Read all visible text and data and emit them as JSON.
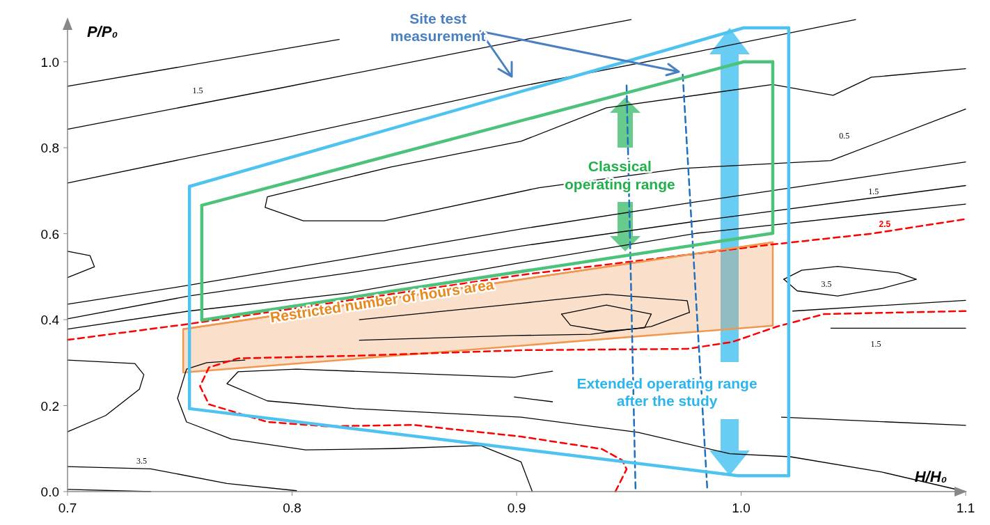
{
  "chart_data": {
    "type": "line",
    "xlabel": "H/H₀",
    "ylabel": "P/P₀",
    "xlim": [
      0.7,
      1.1
    ],
    "ylim": [
      0,
      1.1
    ],
    "xticks": [
      0.7,
      0.8,
      0.9,
      {
        "value": 1,
        "label": "1.0"
      },
      1.1
    ],
    "yticks": [
      {
        "value": 0,
        "label": "0.0"
      },
      0.2,
      0.4,
      0.6,
      0.8,
      {
        "value": 1,
        "label": "1.0"
      }
    ],
    "grid": false,
    "color": "#000000",
    "series": [
      {
        "x": [
          0.7,
          0.821
        ],
        "values": [
          0.943,
          1.052
        ]
      },
      {
        "x": [
          0.7,
          0.794,
          0.902,
          0.951
        ],
        "values": [
          0.843,
          0.938,
          1.05,
          1.098
        ]
      },
      {
        "x": [
          0.7,
          0.794,
          0.902,
          0.98,
          1.051
        ],
        "values": [
          0.718,
          0.82,
          0.943,
          1.023,
          1.098
        ]
      },
      {
        "x": [
          1.1,
          1.04,
          0.974,
          0.91,
          0.841,
          0.805,
          0.788,
          0.789,
          0.844,
          0.902,
          0.94,
          1.014,
          1.041,
          1.058,
          1.1
        ],
        "values": [
          0.89,
          0.77,
          0.752,
          0.707,
          0.63,
          0.63,
          0.661,
          0.686,
          0.755,
          0.815,
          0.893,
          0.947,
          0.922,
          0.964,
          0.984
        ]
      },
      {
        "x": [
          0.7,
          0.754,
          0.828,
          0.902,
          0.98,
          1.1
        ],
        "values": [
          0.436,
          0.48,
          0.545,
          0.611,
          0.674,
          0.767
        ]
      },
      {
        "x": [
          0.7,
          0.754,
          0.828,
          0.899,
          0.98,
          1.1
        ],
        "values": [
          0.402,
          0.455,
          0.511,
          0.569,
          0.629,
          0.712
        ]
      },
      {
        "x": [
          0.7,
          0.754,
          0.825,
          0.899,
          0.98,
          1.1
        ],
        "values": [
          0.378,
          0.42,
          0.462,
          0.53,
          0.601,
          0.669
        ]
      },
      {
        "x": [
          0.7,
          0.71,
          0.712,
          0.7
        ],
        "values": [
          0.559,
          0.549,
          0.523,
          0.498
        ]
      },
      {
        "x": [
          0.7,
          0.73,
          0.734,
          0.732,
          0.717,
          0.7
        ],
        "values": [
          0.306,
          0.298,
          0.272,
          0.238,
          0.177,
          0.139
        ]
      },
      {
        "x": [
          0.779,
          0.762,
          0.753,
          0.749,
          0.753,
          0.773,
          0.806,
          0.845,
          0.884,
          0.902,
          0.907
        ],
        "values": [
          0.306,
          0.3,
          0.285,
          0.217,
          0.162,
          0.122,
          0.097,
          0.1,
          0.107,
          0.069,
          0
        ]
      },
      {
        "x": [
          0.916,
          0.899,
          0.802,
          0.776,
          0.771,
          0.789,
          0.828,
          0.902,
          0.954,
          0.995,
          1.022,
          1.063,
          1.1
        ],
        "values": [
          0.28,
          0.266,
          0.285,
          0.279,
          0.251,
          0.211,
          0.193,
          0.173,
          0.138,
          0.088,
          0.081,
          0.045,
          0
        ]
      },
      {
        "x": [
          1.018,
          1.1
        ],
        "values": [
          0.173,
          0.154
        ]
      },
      {
        "x": [
          0.899,
          0.916
        ],
        "values": [
          0.22,
          0.209
        ]
      },
      {
        "x": [
          0.7,
          0.737,
          0.771,
          0.802
        ],
        "values": [
          0.058,
          0.053,
          0.019,
          0.002
        ]
      },
      {
        "x": [
          0.7,
          0.737
        ],
        "values": [
          0.005,
          0
        ]
      },
      {
        "x": [
          1.019,
          1.027,
          1.043,
          1.07,
          1.078
        ],
        "values": [
          0.494,
          0.515,
          0.524,
          0.509,
          0.494
        ]
      },
      {
        "x": [
          1.019,
          1.025,
          1.043,
          1.063,
          1.078
        ],
        "values": [
          0.494,
          0.467,
          0.455,
          0.473,
          0.494
        ]
      },
      {
        "x": [
          0.92,
          0.94,
          0.96
        ],
        "values": [
          0.413,
          0.434,
          0.413
        ]
      },
      {
        "x": [
          0.92,
          0.924,
          0.94,
          0.957,
          0.96
        ],
        "values": [
          0.413,
          0.387,
          0.373,
          0.381,
          0.413
        ]
      },
      {
        "x": [
          0.83,
          0.902,
          0.94,
          0.976,
          0.977
        ],
        "values": [
          0.4,
          0.438,
          0.459,
          0.444,
          0.417
        ]
      },
      {
        "x": [
          0.83,
          0.899,
          0.933,
          0.96,
          0.977
        ],
        "values": [
          0.352,
          0.363,
          0.366,
          0.384,
          0.417
        ]
      },
      {
        "x": [
          1.023,
          1.1
        ],
        "values": [
          0.42,
          0.445
        ]
      },
      {
        "x": [
          1.04,
          1.1
        ],
        "values": [
          0.38,
          0.38
        ]
      },
      {
        "color": "#ff0000",
        "line_style": "dashed",
        "x": [
          0.7,
          0.754,
          0.902,
          1.014,
          1.058,
          1.1
        ],
        "values": [
          0.353,
          0.39,
          0.504,
          0.575,
          0.6,
          0.634
        ]
      },
      {
        "color": "#ff0000",
        "line_style": "dashed",
        "x": [
          1.1,
          1.037,
          1.016,
          0.996,
          0.976,
          0.902,
          0.828,
          0.776,
          0.763,
          0.759,
          0.763,
          0.789,
          0.815,
          0.854,
          0.902,
          0.938,
          0.947,
          0.949,
          0.944
        ],
        "values": [
          0.42,
          0.413,
          0.384,
          0.348,
          0.332,
          0.329,
          0.316,
          0.31,
          0.289,
          0.245,
          0.203,
          0.162,
          0.152,
          0.155,
          0.128,
          0.099,
          0.073,
          0.052,
          0
        ]
      },
      {
        "color": "#f09850",
        "x": [
          0.7515,
          1.0141
        ],
        "values": [
          0.378,
          0.58
        ],
        "lower": [
          0.277,
          0.386
        ],
        "upper": [
          0.378,
          0.58
        ]
      },
      {
        "color": "#1f6fbf",
        "line_style": "dashed",
        "x": [
          0.949,
          0.953
        ],
        "values": [
          0.945,
          0
        ]
      },
      {
        "color": "#1f6fbf",
        "line_style": "dashed",
        "x": [
          0.974,
          0.985
        ],
        "values": [
          0.97,
          0
        ]
      },
      {
        "color": "#4fc3f0",
        "x": [
          0.7543,
          1.0011,
          1.0212
        ],
        "values": [
          0.71,
          1.079,
          1.079
        ]
      },
      {
        "color": "#4fc3f0",
        "x": [
          1.0212,
          1.0212
        ],
        "values": [
          1.079,
          0.037
        ]
      },
      {
        "color": "#4fc3f0",
        "x": [
          0.7543,
          0.9986,
          1.0212
        ],
        "values": [
          0.193,
          0.037,
          0.037
        ]
      },
      {
        "color": "#4fc3f0",
        "x": [
          0.7543,
          0.7543
        ],
        "values": [
          0.71,
          0.193
        ]
      },
      {
        "color": "#4cc27a",
        "x": [
          0.7598,
          1.0011,
          1.0141
        ],
        "values": [
          0.666,
          1,
          1
        ]
      },
      {
        "color": "#4cc27a",
        "x": [
          1.0141,
          1.0141
        ],
        "values": [
          1,
          0.601
        ]
      },
      {
        "color": "#4cc27a",
        "x": [
          0.7598,
          1.0141
        ],
        "values": [
          0.399,
          0.601
        ]
      },
      {
        "color": "#4cc27a",
        "x": [
          0.7598,
          0.7598
        ],
        "values": [
          0.666,
          0.399
        ]
      }
    ],
    "annotations": [
      "1.5",
      "0.5",
      "1.5",
      "2.5",
      "3.5",
      "1.5",
      "3.5",
      "Site test measurement",
      "Classical operating range",
      "Restricted number of hours area",
      "Extended operating range after the study"
    ]
  }
}
